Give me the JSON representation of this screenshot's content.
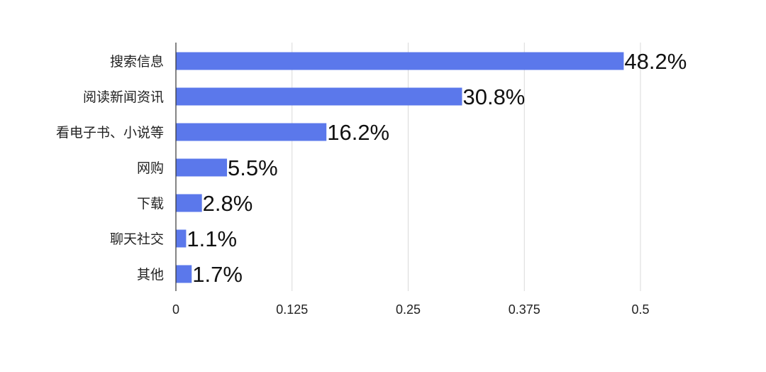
{
  "chart_data": {
    "type": "bar",
    "orientation": "horizontal",
    "title": "",
    "xlabel": "",
    "ylabel": "",
    "categories": [
      "搜索信息",
      "阅读新闻资讯",
      "看电子书、小说等",
      "网购",
      "下载",
      "聊天社交",
      "其他"
    ],
    "values": [
      0.482,
      0.308,
      0.162,
      0.055,
      0.028,
      0.011,
      0.017
    ],
    "data_labels": [
      "48.2%",
      "30.8%",
      "16.2%",
      "5.5%",
      "2.8%",
      "1.1%",
      "1.7%"
    ],
    "xlim": [
      0,
      0.5
    ],
    "x_ticks": [
      0,
      0.125,
      0.25,
      0.375,
      0.5
    ],
    "x_tick_labels": [
      "0",
      "0.125",
      "0.25",
      "0.375",
      "0.5"
    ],
    "grid": "vertical",
    "legend": "none",
    "bar_color": "#5b78eb"
  }
}
